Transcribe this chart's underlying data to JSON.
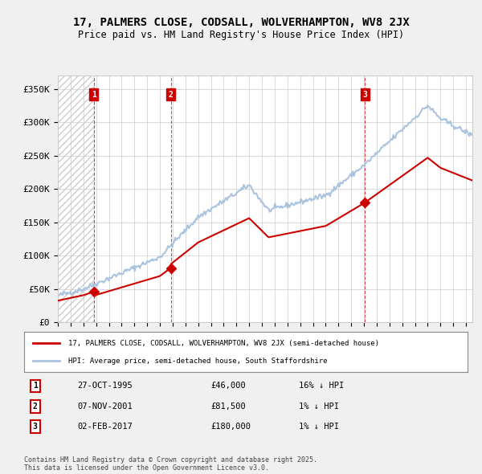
{
  "title": "17, PALMERS CLOSE, CODSALL, WOLVERHAMPTON, WV8 2JX",
  "subtitle": "Price paid vs. HM Land Registry's House Price Index (HPI)",
  "ylim": [
    0,
    370000
  ],
  "yticks": [
    0,
    50000,
    100000,
    150000,
    200000,
    250000,
    300000,
    350000
  ],
  "ytick_labels": [
    "£0",
    "£50K",
    "£100K",
    "£150K",
    "£200K",
    "£250K",
    "£300K",
    "£350K"
  ],
  "bg_color": "#f0f0f0",
  "plot_bg_color": "#ffffff",
  "hpi_color": "#aac4e0",
  "price_color": "#cc0000",
  "purchases": [
    {
      "date_num": 1995.82,
      "price": 46000,
      "label": "1"
    },
    {
      "date_num": 2001.85,
      "price": 81500,
      "label": "2"
    },
    {
      "date_num": 2017.09,
      "price": 180000,
      "label": "3"
    }
  ],
  "purchase_table": [
    {
      "num": "1",
      "date": "27-OCT-1995",
      "price": "£46,000",
      "hpi": "16% ↓ HPI"
    },
    {
      "num": "2",
      "date": "07-NOV-2001",
      "price": "£81,500",
      "hpi": "1% ↓ HPI"
    },
    {
      "num": "3",
      "date": "02-FEB-2017",
      "price": "£180,000",
      "hpi": "1% ↓ HPI"
    }
  ],
  "legend_line1": "17, PALMERS CLOSE, CODSALL, WOLVERHAMPTON, WV8 2JX (semi-detached house)",
  "legend_line2": "HPI: Average price, semi-detached house, South Staffordshire",
  "footer": "Contains HM Land Registry data © Crown copyright and database right 2025.\nThis data is licensed under the Open Government Licence v3.0.",
  "xmin": 1993.0,
  "xmax": 2025.5
}
